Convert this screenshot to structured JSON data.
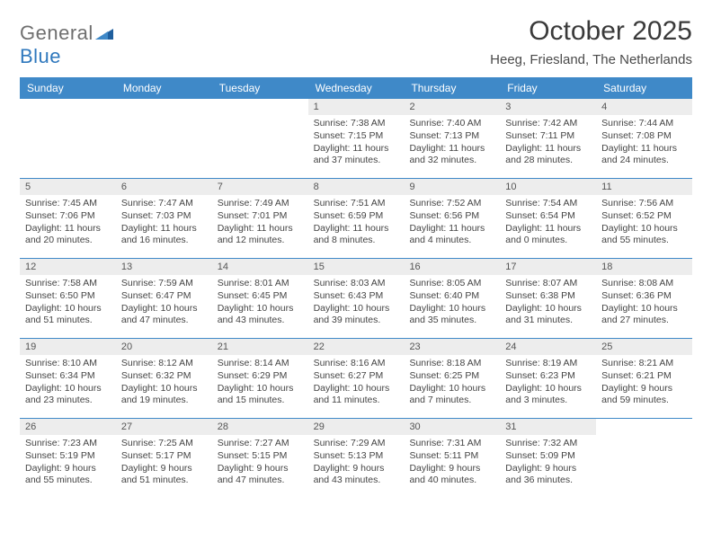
{
  "logo": {
    "general": "General",
    "blue": "Blue"
  },
  "title": "October 2025",
  "location": "Heeg, Friesland, The Netherlands",
  "colors": {
    "header_bg": "#3f89c8",
    "header_text": "#ffffff",
    "daynum_bg": "#ededed",
    "border": "#3f89c8",
    "logo_gray": "#6f6f6f",
    "logo_blue": "#2f78bd"
  },
  "weekdays": [
    "Sunday",
    "Monday",
    "Tuesday",
    "Wednesday",
    "Thursday",
    "Friday",
    "Saturday"
  ],
  "weeks": [
    [
      {
        "empty": true
      },
      {
        "empty": true
      },
      {
        "empty": true
      },
      {
        "day": "1",
        "sunrise": "Sunrise: 7:38 AM",
        "sunset": "Sunset: 7:15 PM",
        "daylight1": "Daylight: 11 hours",
        "daylight2": "and 37 minutes."
      },
      {
        "day": "2",
        "sunrise": "Sunrise: 7:40 AM",
        "sunset": "Sunset: 7:13 PM",
        "daylight1": "Daylight: 11 hours",
        "daylight2": "and 32 minutes."
      },
      {
        "day": "3",
        "sunrise": "Sunrise: 7:42 AM",
        "sunset": "Sunset: 7:11 PM",
        "daylight1": "Daylight: 11 hours",
        "daylight2": "and 28 minutes."
      },
      {
        "day": "4",
        "sunrise": "Sunrise: 7:44 AM",
        "sunset": "Sunset: 7:08 PM",
        "daylight1": "Daylight: 11 hours",
        "daylight2": "and 24 minutes."
      }
    ],
    [
      {
        "day": "5",
        "sunrise": "Sunrise: 7:45 AM",
        "sunset": "Sunset: 7:06 PM",
        "daylight1": "Daylight: 11 hours",
        "daylight2": "and 20 minutes."
      },
      {
        "day": "6",
        "sunrise": "Sunrise: 7:47 AM",
        "sunset": "Sunset: 7:03 PM",
        "daylight1": "Daylight: 11 hours",
        "daylight2": "and 16 minutes."
      },
      {
        "day": "7",
        "sunrise": "Sunrise: 7:49 AM",
        "sunset": "Sunset: 7:01 PM",
        "daylight1": "Daylight: 11 hours",
        "daylight2": "and 12 minutes."
      },
      {
        "day": "8",
        "sunrise": "Sunrise: 7:51 AM",
        "sunset": "Sunset: 6:59 PM",
        "daylight1": "Daylight: 11 hours",
        "daylight2": "and 8 minutes."
      },
      {
        "day": "9",
        "sunrise": "Sunrise: 7:52 AM",
        "sunset": "Sunset: 6:56 PM",
        "daylight1": "Daylight: 11 hours",
        "daylight2": "and 4 minutes."
      },
      {
        "day": "10",
        "sunrise": "Sunrise: 7:54 AM",
        "sunset": "Sunset: 6:54 PM",
        "daylight1": "Daylight: 11 hours",
        "daylight2": "and 0 minutes."
      },
      {
        "day": "11",
        "sunrise": "Sunrise: 7:56 AM",
        "sunset": "Sunset: 6:52 PM",
        "daylight1": "Daylight: 10 hours",
        "daylight2": "and 55 minutes."
      }
    ],
    [
      {
        "day": "12",
        "sunrise": "Sunrise: 7:58 AM",
        "sunset": "Sunset: 6:50 PM",
        "daylight1": "Daylight: 10 hours",
        "daylight2": "and 51 minutes."
      },
      {
        "day": "13",
        "sunrise": "Sunrise: 7:59 AM",
        "sunset": "Sunset: 6:47 PM",
        "daylight1": "Daylight: 10 hours",
        "daylight2": "and 47 minutes."
      },
      {
        "day": "14",
        "sunrise": "Sunrise: 8:01 AM",
        "sunset": "Sunset: 6:45 PM",
        "daylight1": "Daylight: 10 hours",
        "daylight2": "and 43 minutes."
      },
      {
        "day": "15",
        "sunrise": "Sunrise: 8:03 AM",
        "sunset": "Sunset: 6:43 PM",
        "daylight1": "Daylight: 10 hours",
        "daylight2": "and 39 minutes."
      },
      {
        "day": "16",
        "sunrise": "Sunrise: 8:05 AM",
        "sunset": "Sunset: 6:40 PM",
        "daylight1": "Daylight: 10 hours",
        "daylight2": "and 35 minutes."
      },
      {
        "day": "17",
        "sunrise": "Sunrise: 8:07 AM",
        "sunset": "Sunset: 6:38 PM",
        "daylight1": "Daylight: 10 hours",
        "daylight2": "and 31 minutes."
      },
      {
        "day": "18",
        "sunrise": "Sunrise: 8:08 AM",
        "sunset": "Sunset: 6:36 PM",
        "daylight1": "Daylight: 10 hours",
        "daylight2": "and 27 minutes."
      }
    ],
    [
      {
        "day": "19",
        "sunrise": "Sunrise: 8:10 AM",
        "sunset": "Sunset: 6:34 PM",
        "daylight1": "Daylight: 10 hours",
        "daylight2": "and 23 minutes."
      },
      {
        "day": "20",
        "sunrise": "Sunrise: 8:12 AM",
        "sunset": "Sunset: 6:32 PM",
        "daylight1": "Daylight: 10 hours",
        "daylight2": "and 19 minutes."
      },
      {
        "day": "21",
        "sunrise": "Sunrise: 8:14 AM",
        "sunset": "Sunset: 6:29 PM",
        "daylight1": "Daylight: 10 hours",
        "daylight2": "and 15 minutes."
      },
      {
        "day": "22",
        "sunrise": "Sunrise: 8:16 AM",
        "sunset": "Sunset: 6:27 PM",
        "daylight1": "Daylight: 10 hours",
        "daylight2": "and 11 minutes."
      },
      {
        "day": "23",
        "sunrise": "Sunrise: 8:18 AM",
        "sunset": "Sunset: 6:25 PM",
        "daylight1": "Daylight: 10 hours",
        "daylight2": "and 7 minutes."
      },
      {
        "day": "24",
        "sunrise": "Sunrise: 8:19 AM",
        "sunset": "Sunset: 6:23 PM",
        "daylight1": "Daylight: 10 hours",
        "daylight2": "and 3 minutes."
      },
      {
        "day": "25",
        "sunrise": "Sunrise: 8:21 AM",
        "sunset": "Sunset: 6:21 PM",
        "daylight1": "Daylight: 9 hours",
        "daylight2": "and 59 minutes."
      }
    ],
    [
      {
        "day": "26",
        "sunrise": "Sunrise: 7:23 AM",
        "sunset": "Sunset: 5:19 PM",
        "daylight1": "Daylight: 9 hours",
        "daylight2": "and 55 minutes."
      },
      {
        "day": "27",
        "sunrise": "Sunrise: 7:25 AM",
        "sunset": "Sunset: 5:17 PM",
        "daylight1": "Daylight: 9 hours",
        "daylight2": "and 51 minutes."
      },
      {
        "day": "28",
        "sunrise": "Sunrise: 7:27 AM",
        "sunset": "Sunset: 5:15 PM",
        "daylight1": "Daylight: 9 hours",
        "daylight2": "and 47 minutes."
      },
      {
        "day": "29",
        "sunrise": "Sunrise: 7:29 AM",
        "sunset": "Sunset: 5:13 PM",
        "daylight1": "Daylight: 9 hours",
        "daylight2": "and 43 minutes."
      },
      {
        "day": "30",
        "sunrise": "Sunrise: 7:31 AM",
        "sunset": "Sunset: 5:11 PM",
        "daylight1": "Daylight: 9 hours",
        "daylight2": "and 40 minutes."
      },
      {
        "day": "31",
        "sunrise": "Sunrise: 7:32 AM",
        "sunset": "Sunset: 5:09 PM",
        "daylight1": "Daylight: 9 hours",
        "daylight2": "and 36 minutes."
      },
      {
        "empty": true
      }
    ]
  ]
}
